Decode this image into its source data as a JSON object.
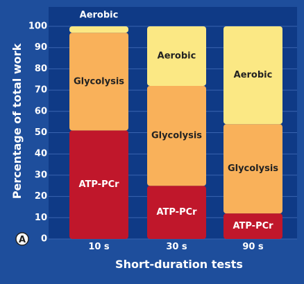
{
  "chart_data": {
    "type": "bar",
    "stacked": true,
    "panel_label": "A",
    "xlabel": "Short-duration tests",
    "ylabel": "Percentage of total work",
    "ylim": [
      0,
      100
    ],
    "yticks": [
      0,
      10,
      20,
      30,
      40,
      50,
      60,
      70,
      80,
      90,
      100
    ],
    "categories": [
      "10 s",
      "30 s",
      "90 s"
    ],
    "series": [
      {
        "name": "ATP-PCr",
        "values": [
          51,
          25,
          12
        ],
        "color": "#c0172b",
        "label_color": "#ffffff"
      },
      {
        "name": "Glycolysis",
        "values": [
          46,
          47,
          42
        ],
        "color": "#f9b15a",
        "label_color": "#222222"
      },
      {
        "name": "Aerobic",
        "values": [
          3,
          28,
          46
        ],
        "color": "#fbe884",
        "label_color": "#222222"
      }
    ],
    "colors": {
      "background": "#1e4e9c",
      "plot_background": "#0f3a86",
      "grid": "#3a64b0"
    }
  }
}
